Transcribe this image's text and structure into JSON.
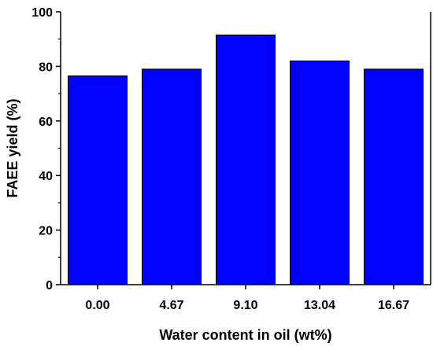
{
  "chart_data": {
    "type": "bar",
    "categories": [
      "0.00",
      "4.67",
      "9.10",
      "13.04",
      "16.67"
    ],
    "values": [
      76.5,
      79,
      91.5,
      82,
      79
    ],
    "title": "",
    "xlabel": "Water content in oil (wt%)",
    "ylabel": "FAEE yield (%)",
    "ylim": [
      0,
      100
    ],
    "yticks": [
      0,
      20,
      40,
      60,
      80,
      100
    ],
    "grid": false,
    "legend": "none",
    "bar_color": "#0000ff",
    "bar_edge_color": "#000000"
  }
}
